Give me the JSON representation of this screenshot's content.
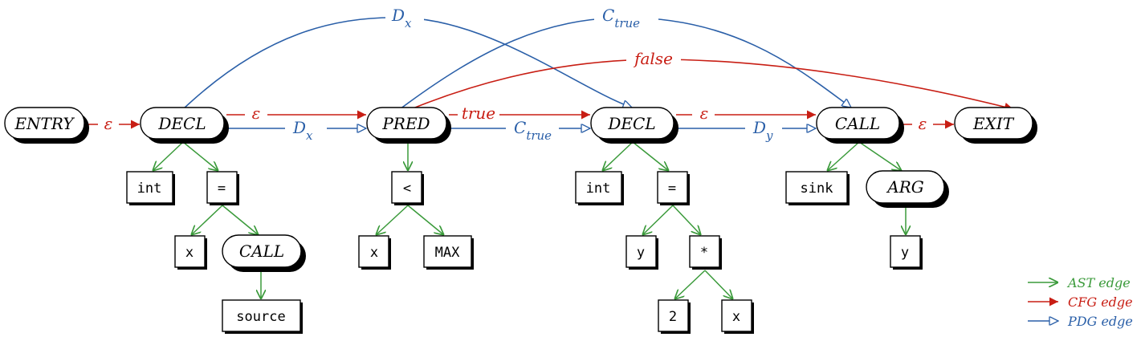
{
  "diagram": {
    "nodes": {
      "entry": "ENTRY",
      "decl1": "DECL",
      "pred": "PRED",
      "decl2": "DECL",
      "call": "CALL",
      "exit": "EXIT",
      "int1": "int",
      "eq1": "=",
      "x1": "x",
      "call_source": "CALL",
      "source": "source",
      "lt": "<",
      "x2": "x",
      "max": "MAX",
      "int2": "int",
      "eq2": "=",
      "y1": "y",
      "mul": "*",
      "two": "2",
      "x3": "x",
      "sink": "sink",
      "arg": "ARG",
      "y2": "y"
    },
    "labels": {
      "cfg_eps1": "ε",
      "cfg_eps2": "ε",
      "cfg_true": "true",
      "cfg_eps3": "ε",
      "cfg_eps4": "ε",
      "cfg_false": "false",
      "pdg_dx_bottom": "D",
      "pdg_dx_bottom_sub": "x",
      "pdg_ctrue_bottom": "C",
      "pdg_ctrue_bottom_sub": "true",
      "pdg_dy_bottom": "D",
      "pdg_dy_bottom_sub": "y",
      "pdg_dx_top": "D",
      "pdg_dx_top_sub": "x",
      "pdg_ctrue_top": "C",
      "pdg_ctrue_top_sub": "true"
    }
  },
  "legend": {
    "ast": "AST edge",
    "cfg": "CFG edge",
    "pdg": "PDG edge"
  },
  "colors": {
    "ast": "#3a9a3a",
    "cfg": "#c81e14",
    "pdg": "#2a5fa8"
  }
}
